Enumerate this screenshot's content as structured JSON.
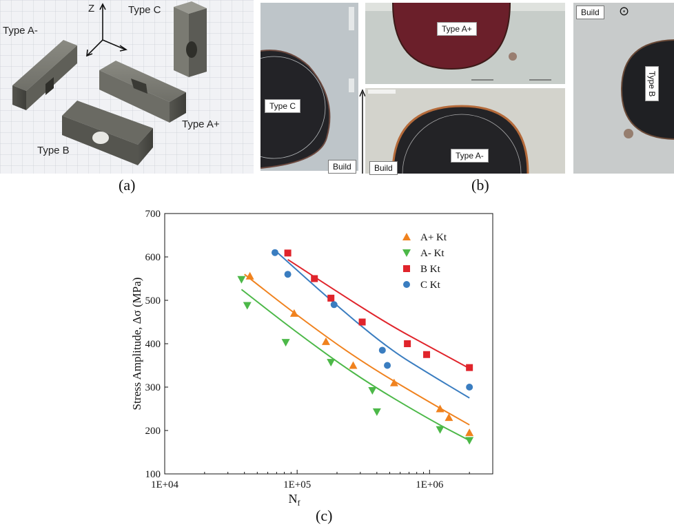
{
  "panel_a": {
    "axis_label": "Z",
    "labels": [
      "Type A-",
      "Type C",
      "Type A+",
      "Type B"
    ],
    "caption": "(a)"
  },
  "panel_b": {
    "labels": {
      "type_c": "Type C",
      "type_a_plus": "Type A+",
      "type_a_minus": "Type A-",
      "type_b": "Type B"
    },
    "build": "Build",
    "build_dot": "⊙",
    "caption": "(b)"
  },
  "panel_c": {
    "caption": "(c)"
  },
  "chart_data": {
    "type": "scatter",
    "xscale": "log",
    "xlim": [
      10000,
      3000000
    ],
    "ylim": [
      100,
      700
    ],
    "xlabel": "Nf",
    "ylabel": "Stress Amplitude, Δσ (MPa)",
    "x_ticks": [
      10000,
      100000,
      1000000
    ],
    "x_tick_labels": [
      "1E+04",
      "1E+05",
      "1E+06"
    ],
    "y_ticks": [
      100,
      200,
      300,
      400,
      500,
      600,
      700
    ],
    "grid": false,
    "legend_position": "top-right",
    "series": [
      {
        "name": "A+ Kt",
        "marker": "triangle-up",
        "color": "#F0821E",
        "x": [
          44000,
          95000,
          165000,
          265000,
          540000,
          1200000,
          1400000,
          2000000
        ],
        "y": [
          556,
          470,
          405,
          350,
          310,
          250,
          230,
          195
        ],
        "fit": [
          [
            40000,
            560
          ],
          [
            100000,
            465
          ],
          [
            300000,
            360
          ],
          [
            1000000,
            265
          ],
          [
            2000000,
            213
          ]
        ]
      },
      {
        "name": "A- Kt",
        "marker": "triangle-down",
        "color": "#4CB848",
        "x": [
          38000,
          42000,
          82000,
          180000,
          370000,
          400000,
          1200000,
          2000000
        ],
        "y": [
          548,
          488,
          403,
          357,
          292,
          243,
          202,
          177
        ],
        "fit": [
          [
            38000,
            525
          ],
          [
            100000,
            425
          ],
          [
            300000,
            320
          ],
          [
            1000000,
            225
          ],
          [
            2000000,
            177
          ]
        ]
      },
      {
        "name": "B Kt",
        "marker": "square",
        "color": "#E0242B",
        "x": [
          85000,
          135000,
          180000,
          310000,
          680000,
          950000,
          2000000
        ],
        "y": [
          609,
          550,
          505,
          450,
          400,
          375,
          345
        ],
        "fit": [
          [
            85000,
            594
          ],
          [
            200000,
            520
          ],
          [
            500000,
            443
          ],
          [
            1000000,
            393
          ],
          [
            2000000,
            343
          ]
        ]
      },
      {
        "name": "C Kt",
        "marker": "circle",
        "color": "#3A7DC0",
        "x": [
          68000,
          85000,
          190000,
          440000,
          480000,
          2000000
        ],
        "y": [
          610,
          560,
          490,
          385,
          350,
          300
        ],
        "fit": [
          [
            68000,
            615
          ],
          [
            200000,
            487
          ],
          [
            500000,
            387
          ],
          [
            1000000,
            330
          ],
          [
            2000000,
            275
          ]
        ]
      }
    ]
  }
}
